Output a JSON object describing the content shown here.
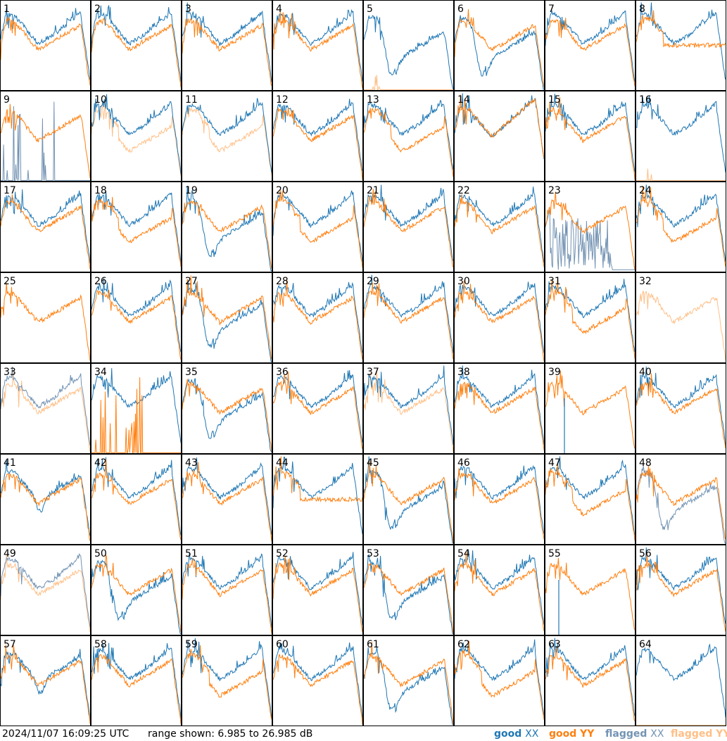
{
  "footer": {
    "timestamp": "2024/11/07 16:09:25 UTC",
    "range_text": "range shown: 6.985 to 26.985 dB"
  },
  "legend": [
    {
      "id": "good_xx",
      "prefix": "good ",
      "pol": "XX",
      "color": "#1f77b4"
    },
    {
      "id": "good_yy",
      "prefix": "good ",
      "pol": "YY",
      "color": "#ff7f0e"
    },
    {
      "id": "flagged_xx",
      "prefix": "flagged ",
      "pol": "XX",
      "color": "#7393b3"
    },
    {
      "id": "flagged_yy",
      "prefix": "flagged ",
      "pol": "YY",
      "color": "#ffbf86"
    }
  ],
  "colors": {
    "good_xx": "#1f77b4",
    "good_yy": "#ff7f0e",
    "flagged_xx": "#7393b3",
    "flagged_yy": "#ffbf86",
    "frame": "#000000"
  },
  "chart_data": {
    "type": "line",
    "layout": "8x8 small multiples",
    "y_range_db": [
      6.985,
      26.985
    ],
    "panels": [
      {
        "label": "1",
        "xx": "good",
        "yy": "good",
        "shape": "typical"
      },
      {
        "label": "2",
        "xx": "good",
        "yy": "good",
        "shape": "typical"
      },
      {
        "label": "3",
        "xx": "good",
        "yy": "good",
        "shape": "typical"
      },
      {
        "label": "4",
        "xx": "good",
        "yy": "good",
        "shape": "typical"
      },
      {
        "label": "5",
        "xx": "good",
        "yy": "flagged",
        "shape": "xx-dip-yy-low"
      },
      {
        "label": "6",
        "xx": "good",
        "yy": "good",
        "shape": "xx-dip"
      },
      {
        "label": "7",
        "xx": "good",
        "yy": "good",
        "shape": "typical"
      },
      {
        "label": "8",
        "xx": "good",
        "yy": "good",
        "shape": "flat-tail"
      },
      {
        "label": "9",
        "xx": "flagged",
        "yy": "good",
        "shape": "xx-spikes-low"
      },
      {
        "label": "10",
        "xx": "good",
        "yy": "flagged",
        "shape": "yy-lower"
      },
      {
        "label": "11",
        "xx": "good",
        "yy": "flagged",
        "shape": "yy-lower"
      },
      {
        "label": "12",
        "xx": "good",
        "yy": "good",
        "shape": "typical"
      },
      {
        "label": "13",
        "xx": "good",
        "yy": "good",
        "shape": "yy-lower"
      },
      {
        "label": "14",
        "xx": "good",
        "yy": "good",
        "shape": "rising"
      },
      {
        "label": "15",
        "xx": "good",
        "yy": "good",
        "shape": "typical"
      },
      {
        "label": "16",
        "xx": "good",
        "yy": "flagged",
        "shape": "xx-only-yy-low"
      },
      {
        "label": "17",
        "xx": "good",
        "yy": "good",
        "shape": "typical"
      },
      {
        "label": "18",
        "xx": "good",
        "yy": "good",
        "shape": "yy-lower"
      },
      {
        "label": "19",
        "xx": "good",
        "yy": "good",
        "shape": "xx-dip"
      },
      {
        "label": "20",
        "xx": "good",
        "yy": "good",
        "shape": "yy-lower"
      },
      {
        "label": "21",
        "xx": "good",
        "yy": "good",
        "shape": "typical"
      },
      {
        "label": "22",
        "xx": "good",
        "yy": "good",
        "shape": "typical"
      },
      {
        "label": "23",
        "xx": "flagged",
        "yy": "good",
        "shape": "xx-noisy"
      },
      {
        "label": "24",
        "xx": "good",
        "yy": "good",
        "shape": "yy-lower"
      },
      {
        "label": "25",
        "xx": "good",
        "yy": "good",
        "shape": "yy-only"
      },
      {
        "label": "26",
        "xx": "good",
        "yy": "good",
        "shape": "typical"
      },
      {
        "label": "27",
        "xx": "good",
        "yy": "good",
        "shape": "xx-dip"
      },
      {
        "label": "28",
        "xx": "good",
        "yy": "good",
        "shape": "typical"
      },
      {
        "label": "29",
        "xx": "good",
        "yy": "good",
        "shape": "typical"
      },
      {
        "label": "30",
        "xx": "good",
        "yy": "good",
        "shape": "typical"
      },
      {
        "label": "31",
        "xx": "good",
        "yy": "good",
        "shape": "yy-lower"
      },
      {
        "label": "32",
        "xx": "good",
        "yy": "flagged",
        "shape": "yy-only"
      },
      {
        "label": "33",
        "xx": "flagged",
        "yy": "flagged",
        "shape": "typical"
      },
      {
        "label": "34",
        "xx": "good",
        "yy": "good",
        "shape": "yy-spikes-low"
      },
      {
        "label": "35",
        "xx": "good",
        "yy": "good",
        "shape": "xx-dip"
      },
      {
        "label": "36",
        "xx": "good",
        "yy": "good",
        "shape": "typical"
      },
      {
        "label": "37",
        "xx": "good",
        "yy": "flagged",
        "shape": "typical"
      },
      {
        "label": "38",
        "xx": "good",
        "yy": "good",
        "shape": "typical"
      },
      {
        "label": "39",
        "xx": "good",
        "yy": "good",
        "shape": "yy-only-xx-spike"
      },
      {
        "label": "40",
        "xx": "good",
        "yy": "good",
        "shape": "typical"
      },
      {
        "label": "41",
        "xx": "good",
        "yy": "good",
        "shape": "xx-dip-small"
      },
      {
        "label": "42",
        "xx": "good",
        "yy": "good",
        "shape": "typical"
      },
      {
        "label": "43",
        "xx": "good",
        "yy": "good",
        "shape": "typical"
      },
      {
        "label": "44",
        "xx": "good",
        "yy": "good",
        "shape": "flat-tail"
      },
      {
        "label": "45",
        "xx": "good",
        "yy": "good",
        "shape": "xx-dip"
      },
      {
        "label": "46",
        "xx": "good",
        "yy": "good",
        "shape": "typical"
      },
      {
        "label": "47",
        "xx": "good",
        "yy": "good",
        "shape": "yy-lower"
      },
      {
        "label": "48",
        "xx": "flagged",
        "yy": "good",
        "shape": "xx-dip"
      },
      {
        "label": "49",
        "xx": "flagged",
        "yy": "flagged",
        "shape": "typical"
      },
      {
        "label": "50",
        "xx": "good",
        "yy": "good",
        "shape": "xx-dip"
      },
      {
        "label": "51",
        "xx": "good",
        "yy": "good",
        "shape": "typical"
      },
      {
        "label": "52",
        "xx": "good",
        "yy": "good",
        "shape": "typical"
      },
      {
        "label": "53",
        "xx": "good",
        "yy": "good",
        "shape": "xx-dip"
      },
      {
        "label": "54",
        "xx": "good",
        "yy": "good",
        "shape": "typical"
      },
      {
        "label": "55",
        "xx": "good",
        "yy": "good",
        "shape": "yy-only-xx-spike"
      },
      {
        "label": "56",
        "xx": "good",
        "yy": "good",
        "shape": "typical"
      },
      {
        "label": "57",
        "xx": "good",
        "yy": "good",
        "shape": "xx-dip-small"
      },
      {
        "label": "58",
        "xx": "good",
        "yy": "good",
        "shape": "typical"
      },
      {
        "label": "59",
        "xx": "good",
        "yy": "good",
        "shape": "yy-lower"
      },
      {
        "label": "60",
        "xx": "good",
        "yy": "good",
        "shape": "typical"
      },
      {
        "label": "61",
        "xx": "good",
        "yy": "good",
        "shape": "xx-dip"
      },
      {
        "label": "62",
        "xx": "good",
        "yy": "good",
        "shape": "yy-lower"
      },
      {
        "label": "63",
        "xx": "good",
        "yy": "good",
        "shape": "typical"
      },
      {
        "label": "64",
        "xx": "good",
        "yy": "flagged",
        "shape": "xx-only-yy-low"
      }
    ]
  }
}
